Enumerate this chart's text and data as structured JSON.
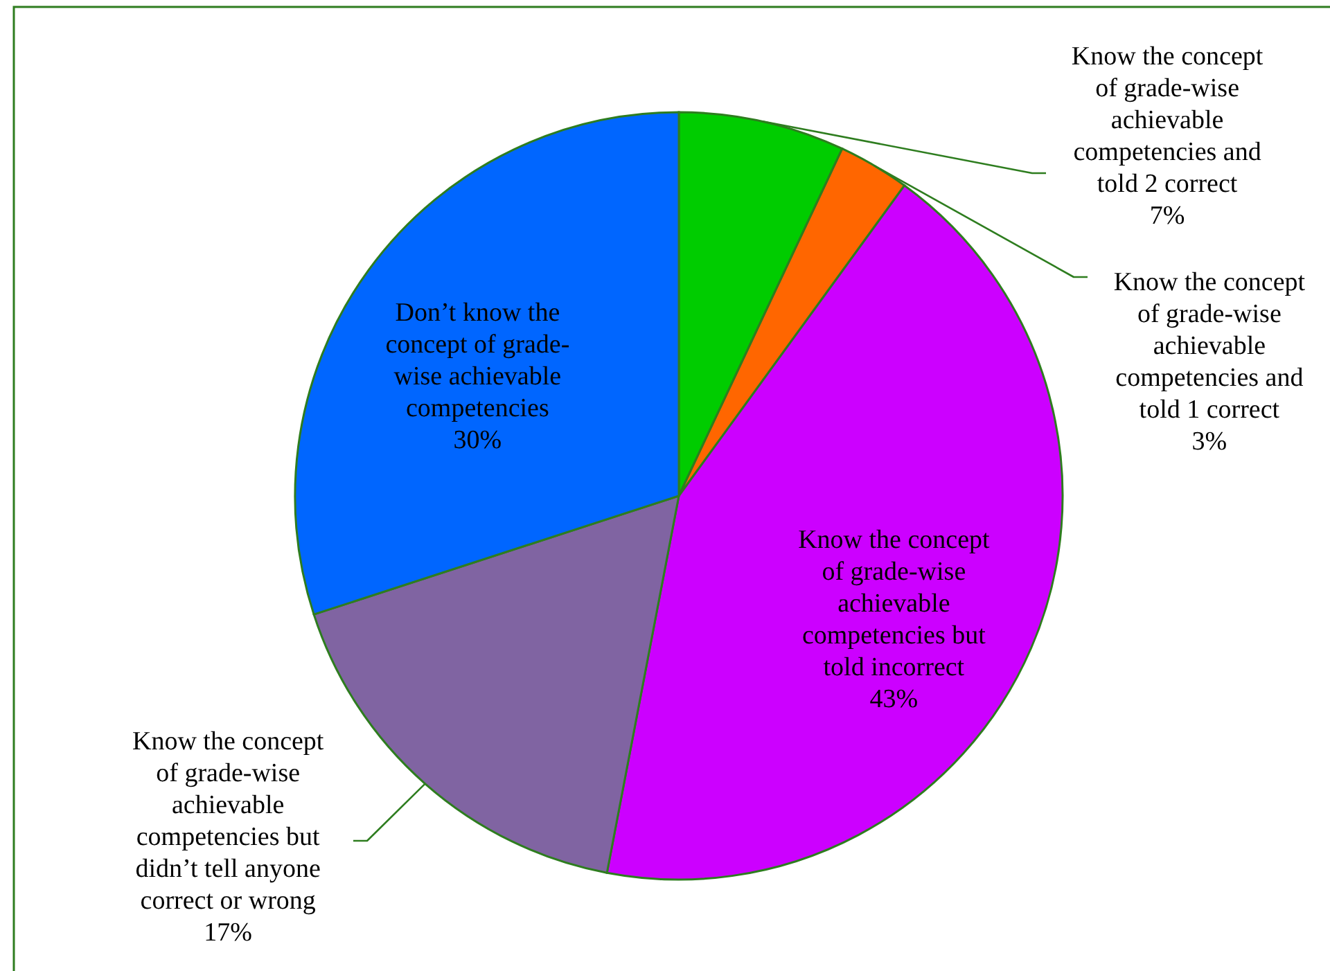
{
  "chart_data": {
    "type": "pie",
    "categories": [
      "Know the concept of grade-wise achievable competencies and told 2 correct",
      "Know the concept of grade-wise achievable competencies and told 1 correct",
      "Know the concept of grade-wise achievable competencies but told incorrect",
      "Know the concept of grade-wise achievable competencies but didn’t tell anyone correct or wrong",
      "Don’t know the concept of grade-wise achievable competencies"
    ],
    "values": [
      7,
      3,
      43,
      17,
      30
    ],
    "colors": [
      "#00cc00",
      "#ff6600",
      "#cc00ff",
      "#8064a2",
      "#0066ff"
    ],
    "value_labels": [
      "7%",
      "3%",
      "43%",
      "17%",
      "30%"
    ]
  }
}
